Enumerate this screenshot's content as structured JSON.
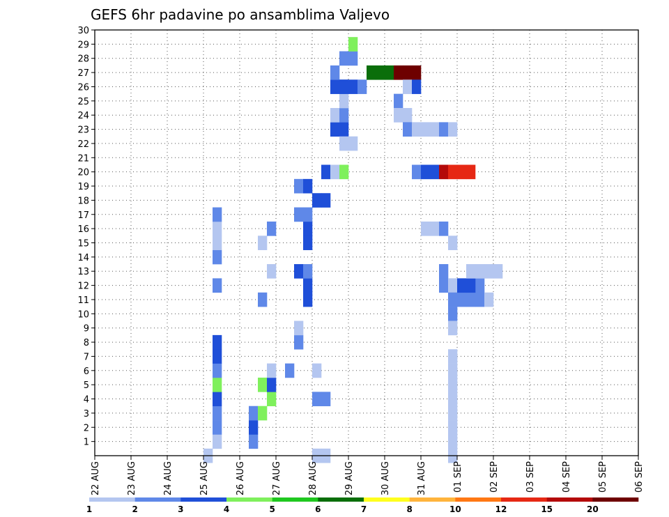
{
  "chart_data": {
    "type": "heatmap",
    "title": "GEFS 6hr padavine po ansamblima Valjevo",
    "xlabel": "",
    "ylabel": "",
    "x_ticks": [
      "22 AUG",
      "23 AUG",
      "24 AUG",
      "25 AUG",
      "26 AUG",
      "27 AUG",
      "28 AUG",
      "29 AUG",
      "30 AUG",
      "31 AUG",
      "01 SEP",
      "02 SEP",
      "03 SEP",
      "04 SEP",
      "05 SEP",
      "06 SEP"
    ],
    "y_ticks": [
      "1",
      "2",
      "3",
      "4",
      "5",
      "6",
      "7",
      "8",
      "9",
      "10",
      "11",
      "12",
      "13",
      "14",
      "15",
      "16",
      "17",
      "18",
      "19",
      "20",
      "21",
      "22",
      "23",
      "24",
      "25",
      "26",
      "27",
      "28",
      "29",
      "30"
    ],
    "xlim_days": [
      0,
      15
    ],
    "ylim": [
      0,
      30
    ],
    "grid": true,
    "colorbar": {
      "placement": "bottom",
      "levels": [
        "1",
        "2",
        "3",
        "4",
        "5",
        "6",
        "7",
        "8",
        "10",
        "12",
        "15",
        "20"
      ],
      "colors": [
        "#b4c6f0",
        "#5f88e8",
        "#1f4fd8",
        "#7ff05c",
        "#1fc81f",
        "#0a6e0a",
        "#ffff1e",
        "#ffb43c",
        "#ff7814",
        "#e62814",
        "#b40a0a",
        "#6e0000"
      ]
    },
    "cells": [
      [
        3.0,
        0,
        0
      ],
      [
        3.25,
        1,
        0
      ],
      [
        3.25,
        2,
        1
      ],
      [
        3.25,
        3,
        1
      ],
      [
        3.25,
        4,
        2
      ],
      [
        3.25,
        5,
        3
      ],
      [
        3.25,
        6,
        1
      ],
      [
        3.25,
        7,
        2
      ],
      [
        3.25,
        8,
        2
      ],
      [
        3.25,
        12,
        1
      ],
      [
        3.25,
        14,
        1
      ],
      [
        3.25,
        15,
        0
      ],
      [
        3.25,
        16,
        0
      ],
      [
        3.25,
        17,
        1
      ],
      [
        4.25,
        1,
        1
      ],
      [
        4.25,
        2,
        2
      ],
      [
        4.25,
        3,
        1
      ],
      [
        4.5,
        3,
        3
      ],
      [
        4.5,
        5,
        3
      ],
      [
        4.5,
        11,
        1
      ],
      [
        4.5,
        15,
        0
      ],
      [
        4.75,
        4,
        3
      ],
      [
        4.75,
        5,
        2
      ],
      [
        4.75,
        6,
        0
      ],
      [
        4.75,
        13,
        0
      ],
      [
        4.75,
        16,
        1
      ],
      [
        5.25,
        6,
        1
      ],
      [
        5.5,
        8,
        1
      ],
      [
        5.5,
        9,
        0
      ],
      [
        5.5,
        13,
        2
      ],
      [
        5.5,
        17,
        1
      ],
      [
        5.5,
        19,
        1
      ],
      [
        5.75,
        11,
        2
      ],
      [
        5.75,
        12,
        2
      ],
      [
        5.75,
        13,
        1
      ],
      [
        5.75,
        15,
        2
      ],
      [
        5.75,
        16,
        2
      ],
      [
        5.75,
        17,
        1
      ],
      [
        5.75,
        19,
        2
      ],
      [
        6.0,
        0,
        0
      ],
      [
        6.25,
        0,
        0
      ],
      [
        6.0,
        4,
        1
      ],
      [
        6.25,
        4,
        1
      ],
      [
        6.0,
        6,
        0
      ],
      [
        6.0,
        18,
        2
      ],
      [
        6.25,
        18,
        2
      ],
      [
        6.25,
        20,
        2
      ],
      [
        6.5,
        20,
        0
      ],
      [
        6.75,
        20,
        3
      ],
      [
        6.5,
        23,
        2
      ],
      [
        6.75,
        23,
        2
      ],
      [
        6.5,
        26,
        2
      ],
      [
        6.75,
        26,
        2
      ],
      [
        6.5,
        27,
        1
      ],
      [
        6.75,
        28,
        1
      ],
      [
        7.0,
        28,
        1
      ],
      [
        7.0,
        29,
        3
      ],
      [
        6.75,
        22,
        0
      ],
      [
        7.0,
        22,
        0
      ],
      [
        6.5,
        24,
        0
      ],
      [
        6.75,
        24,
        1
      ],
      [
        6.75,
        25,
        0
      ],
      [
        6.75,
        26,
        2
      ],
      [
        7.0,
        26,
        2
      ],
      [
        7.25,
        26,
        1
      ],
      [
        7.5,
        27,
        5
      ],
      [
        7.75,
        27,
        5
      ],
      [
        8.0,
        27,
        5
      ],
      [
        8.25,
        27,
        11
      ],
      [
        8.5,
        27,
        11
      ],
      [
        8.75,
        27,
        11
      ],
      [
        8.5,
        26,
        0
      ],
      [
        8.75,
        26,
        2
      ],
      [
        8.25,
        25,
        1
      ],
      [
        8.25,
        24,
        0
      ],
      [
        8.5,
        24,
        0
      ],
      [
        8.5,
        23,
        1
      ],
      [
        8.75,
        23,
        0
      ],
      [
        9.0,
        23,
        0
      ],
      [
        9.25,
        23,
        0
      ],
      [
        9.5,
        23,
        1
      ],
      [
        9.75,
        23,
        0
      ],
      [
        8.75,
        20,
        1
      ],
      [
        9.0,
        20,
        2
      ],
      [
        9.25,
        20,
        2
      ],
      [
        9.5,
        20,
        10
      ],
      [
        9.75,
        20,
        9
      ],
      [
        10.0,
        20,
        9
      ],
      [
        10.25,
        20,
        9
      ],
      [
        9.0,
        16,
        0
      ],
      [
        9.25,
        16,
        0
      ],
      [
        9.5,
        16,
        1
      ],
      [
        9.5,
        12,
        1
      ],
      [
        9.5,
        13,
        1
      ],
      [
        9.75,
        15,
        0
      ],
      [
        9.75,
        12,
        0
      ],
      [
        9.75,
        10,
        1
      ],
      [
        9.75,
        11,
        1
      ],
      [
        10.0,
        11,
        1
      ],
      [
        10.25,
        11,
        1
      ],
      [
        10.5,
        11,
        1
      ],
      [
        10.5,
        12,
        1
      ],
      [
        10.75,
        11,
        0
      ],
      [
        9.75,
        9,
        0
      ],
      [
        9.75,
        7,
        0
      ],
      [
        9.75,
        6,
        0
      ],
      [
        9.75,
        5,
        0
      ],
      [
        9.75,
        4,
        0
      ],
      [
        9.75,
        3,
        0
      ],
      [
        9.75,
        2,
        0
      ],
      [
        9.75,
        1,
        0
      ],
      [
        9.75,
        0,
        0
      ],
      [
        10.0,
        12,
        2
      ],
      [
        10.25,
        12,
        2
      ],
      [
        10.25,
        13,
        0
      ],
      [
        10.5,
        13,
        0
      ],
      [
        10.75,
        13,
        0
      ],
      [
        11.0,
        13,
        0
      ]
    ]
  }
}
